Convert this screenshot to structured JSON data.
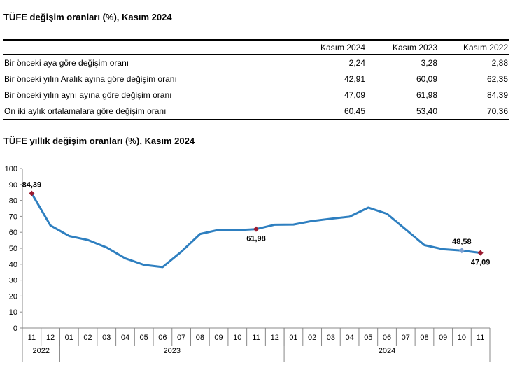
{
  "table_title": "TÜFE değişim oranları (%), Kasım 2024",
  "table": {
    "headers": [
      "",
      "Kasım 2024",
      "Kasım 2023",
      "Kasım 2022"
    ],
    "rows": [
      [
        "Bir önceki aya göre değişim oranı",
        "2,24",
        "3,28",
        "2,88"
      ],
      [
        "Bir önceki yılın Aralık ayına göre değişim oranı",
        "42,91",
        "60,09",
        "62,35"
      ],
      [
        "Bir önceki yılın aynı ayına göre değişim oranı",
        "47,09",
        "61,98",
        "84,39"
      ],
      [
        "On iki aylık ortalamalara göre değişim oranı",
        "60,45",
        "53,40",
        "70,36"
      ]
    ]
  },
  "chart_title": "TÜFE yıllık değişim oranları (%), Kasım 2024",
  "chart_data": {
    "type": "line",
    "categories": [
      "11",
      "12",
      "01",
      "02",
      "03",
      "04",
      "05",
      "06",
      "07",
      "08",
      "09",
      "10",
      "11",
      "12",
      "01",
      "02",
      "03",
      "04",
      "05",
      "06",
      "07",
      "08",
      "09",
      "10",
      "11"
    ],
    "years": [
      {
        "label": "2022",
        "count": 2
      },
      {
        "label": "2023",
        "count": 12
      },
      {
        "label": "2024",
        "count": 11
      }
    ],
    "values": [
      84.39,
      64.27,
      57.68,
      55.18,
      50.51,
      43.68,
      39.59,
      38.21,
      47.83,
      58.94,
      61.53,
      61.36,
      61.98,
      64.77,
      64.86,
      67.07,
      68.5,
      69.8,
      75.45,
      71.6,
      61.78,
      51.97,
      49.38,
      48.58,
      47.09
    ],
    "ylim": [
      0,
      100
    ],
    "yticks": [
      0,
      10,
      20,
      30,
      40,
      50,
      60,
      70,
      80,
      90,
      100
    ],
    "annotations": [
      {
        "index": 0,
        "label": "84,39",
        "marker_color": "#9b1b30",
        "position": "above"
      },
      {
        "index": 12,
        "label": "61,98",
        "marker_color": "#9b1b30",
        "position": "below"
      },
      {
        "index": 23,
        "label": "48,58",
        "marker_color": "#7b9fd0",
        "position": "above"
      },
      {
        "index": 24,
        "label": "47,09",
        "marker_color": "#9b1b30",
        "position": "below"
      }
    ],
    "line_color": "#2e7fc0",
    "grid": false
  }
}
